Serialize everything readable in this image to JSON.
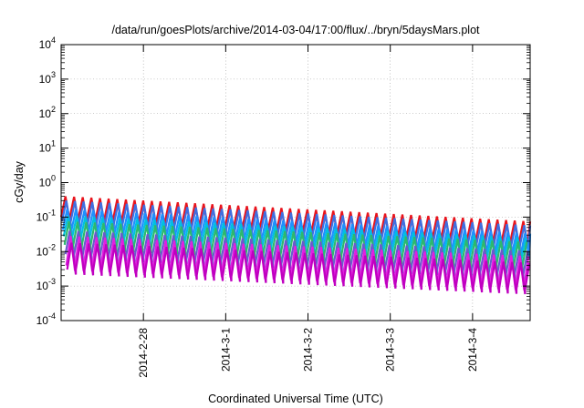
{
  "chart_data": {
    "type": "line",
    "title": "/data/run/goesPlots/archive/2014-03-04/17:00/flux/../bryn/5daysMars.plot",
    "xlabel": "Coordinated Universal Time (UTC)",
    "ylabel": "cGy/day",
    "yscale": "log",
    "ylim": [
      0.0001,
      10000
    ],
    "xlim": [
      0,
      5.7
    ],
    "x_ticks": [
      {
        "x": 1,
        "label": "2014-2-28"
      },
      {
        "x": 2,
        "label": "2014-3-1"
      },
      {
        "x": 3,
        "label": "2014-3-2"
      },
      {
        "x": 4,
        "label": "2014-3-3"
      },
      {
        "x": 5,
        "label": "2014-3-4"
      }
    ],
    "y_ticks": [
      {
        "value": 0.0001,
        "base": "10",
        "exp": "-4"
      },
      {
        "value": 0.001,
        "base": "10",
        "exp": "-3"
      },
      {
        "value": 0.01,
        "base": "10",
        "exp": "-2"
      },
      {
        "value": 0.1,
        "base": "10",
        "exp": "-1"
      },
      {
        "value": 1,
        "base": "10",
        "exp": "0"
      },
      {
        "value": 10,
        "base": "10",
        "exp": "1"
      },
      {
        "value": 100,
        "base": "10",
        "exp": "2"
      },
      {
        "value": 1000,
        "base": "10",
        "exp": "3"
      },
      {
        "value": 10000,
        "base": "10",
        "exp": "4"
      }
    ],
    "grid": true,
    "legend": "none",
    "series_template": {
      "period_days": 0.105,
      "x_start": 0,
      "x_end": 5.7,
      "phase_decay_days": 0.0105
    },
    "series": [
      {
        "color": "#e8141d",
        "peak_start": 0.4,
        "peak_end": 0.072,
        "ratio": 0.18
      },
      {
        "color": "#3f6fe0",
        "peak_start": 0.3,
        "peak_end": 0.055,
        "ratio": 0.18
      },
      {
        "color": "#1e90ff",
        "peak_start": 0.17,
        "peak_end": 0.032,
        "ratio": 0.18
      },
      {
        "color": "#00c0e0",
        "peak_start": 0.11,
        "peak_end": 0.024,
        "ratio": 0.18
      },
      {
        "color": "#2db86e",
        "peak_start": 0.075,
        "peak_end": 0.018,
        "ratio": 0.15
      },
      {
        "color": "#6a5acd",
        "peak_start": 0.04,
        "peak_end": 0.01,
        "ratio": 0.15
      },
      {
        "color": "#e020e0",
        "peak_start": 0.028,
        "peak_end": 0.007,
        "ratio": 0.1
      },
      {
        "color": "#c000c0",
        "peak_start": 0.018,
        "peak_end": 0.0045,
        "ratio": 0.12
      }
    ]
  }
}
